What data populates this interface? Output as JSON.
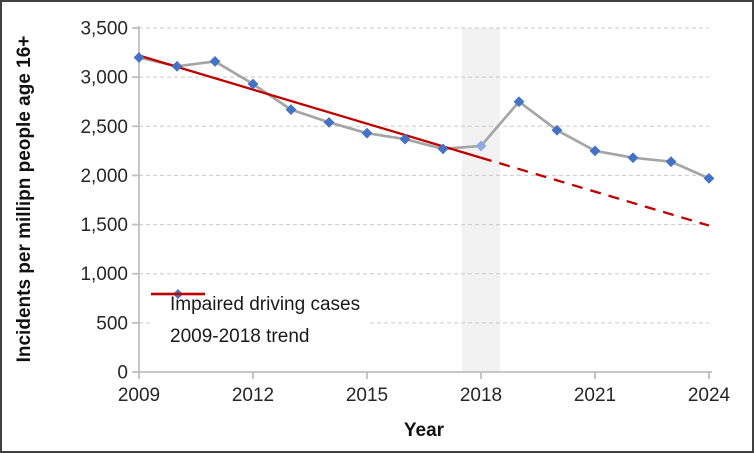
{
  "chart_data": {
    "type": "line",
    "title": "",
    "xlabel": "Year",
    "ylabel": "Incidents per millipn people age 16+",
    "xlim": [
      2009,
      2024
    ],
    "ylim": [
      0,
      3500
    ],
    "x_ticks": [
      2009,
      2012,
      2015,
      2018,
      2021,
      2024
    ],
    "x_tick_labels": [
      "2009",
      "2012",
      "2015",
      "2018",
      "2021",
      "2024"
    ],
    "y_ticks": [
      0,
      500,
      1000,
      1500,
      2000,
      2500,
      3000,
      3500
    ],
    "y_tick_labels": [
      "0",
      "500",
      "1,000",
      "1,500",
      "2,000",
      "2,500",
      "3,000",
      "3,500"
    ],
    "grid": "horizontal dashed",
    "legend_position": "inside lower-left",
    "x": [
      2009,
      2010,
      2011,
      2012,
      2013,
      2014,
      2015,
      2016,
      2017,
      2018,
      2019,
      2020,
      2021,
      2022,
      2023,
      2024
    ],
    "series": [
      {
        "name": "Impaired driving cases",
        "type": "line with diamond markers",
        "values": [
          3200,
          3110,
          3160,
          2930,
          2670,
          2540,
          2430,
          2370,
          2270,
          2300,
          2750,
          2460,
          2250,
          2180,
          2140,
          1970
        ],
        "line_color": "#A5A5A5",
        "marker": "diamond",
        "marker_color": "#4472C4",
        "highlight_point": {
          "year": 2018,
          "marker_color": "#8FAADC"
        }
      },
      {
        "name": "2009-2018 trend",
        "type": "trendline",
        "color": "#C00000",
        "solid_segment": {
          "x": [
            2009,
            2018
          ],
          "values": [
            3220,
            2180
          ]
        },
        "dashed_segment": {
          "x": [
            2018,
            2024
          ],
          "values": [
            2180,
            1490
          ]
        }
      }
    ],
    "highlight_band": {
      "x_from": 2017.5,
      "x_to": 2018.5,
      "color": "#F2F2F2"
    }
  },
  "axes": {
    "x_title": "Year",
    "y_title": "Incidents per millipn people age 16+"
  },
  "legend": {
    "items": [
      {
        "label": "Impaired driving cases"
      },
      {
        "label": "2009-2018 trend"
      }
    ]
  },
  "colors": {
    "axis_line": "#BFBFBF",
    "gridline": "#C9C9C9",
    "tick_text": "#262626",
    "frame_border": "#404040",
    "background": "#FFFFFF"
  }
}
